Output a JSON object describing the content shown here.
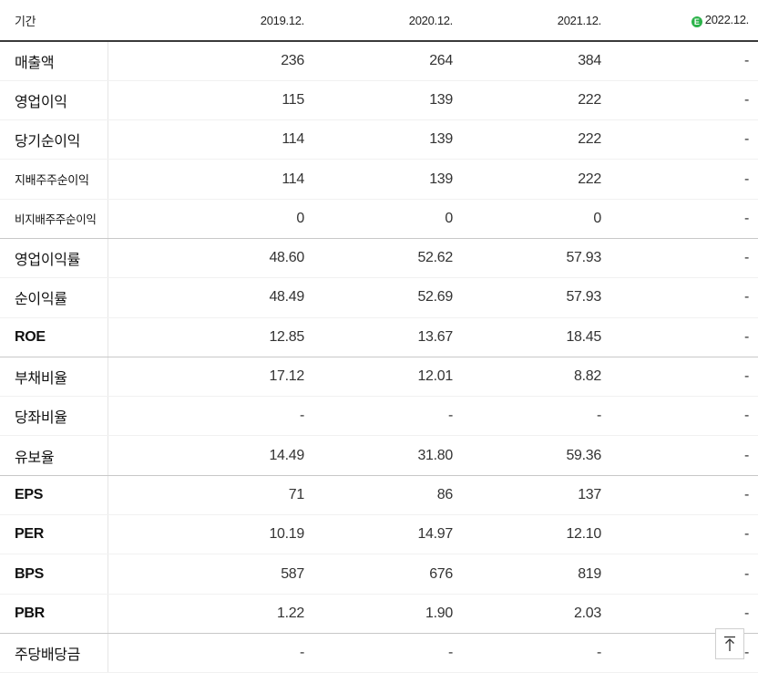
{
  "header": {
    "period_label": "기간",
    "years": [
      "2019.12.",
      "2020.12.",
      "2021.12.",
      "2022.12."
    ],
    "estimate_badge": "E",
    "estimate_color": "#2cb34a"
  },
  "rows": [
    {
      "label": "매출액",
      "values": [
        "236",
        "264",
        "384",
        "-"
      ]
    },
    {
      "label": "영업이익",
      "values": [
        "115",
        "139",
        "222",
        "-"
      ]
    },
    {
      "label": "당기순이익",
      "values": [
        "114",
        "139",
        "222",
        "-"
      ]
    },
    {
      "label": "지배주주순이익",
      "values": [
        "114",
        "139",
        "222",
        "-"
      ]
    },
    {
      "label": "비지배주주순이익",
      "values": [
        "0",
        "0",
        "0",
        "-"
      ]
    },
    {
      "label": "영업이익률",
      "values": [
        "48.60",
        "52.62",
        "57.93",
        "-"
      ]
    },
    {
      "label": "순이익률",
      "values": [
        "48.49",
        "52.69",
        "57.93",
        "-"
      ]
    },
    {
      "label": "ROE",
      "values": [
        "12.85",
        "13.67",
        "18.45",
        "-"
      ]
    },
    {
      "label": "부채비율",
      "values": [
        "17.12",
        "12.01",
        "8.82",
        "-"
      ]
    },
    {
      "label": "당좌비율",
      "values": [
        "-",
        "-",
        "-",
        "-"
      ]
    },
    {
      "label": "유보율",
      "values": [
        "14.49",
        "31.80",
        "59.36",
        "-"
      ]
    },
    {
      "label": "EPS",
      "values": [
        "71",
        "86",
        "137",
        "-"
      ]
    },
    {
      "label": "PER",
      "values": [
        "10.19",
        "14.97",
        "12.10",
        "-"
      ]
    },
    {
      "label": "BPS",
      "values": [
        "587",
        "676",
        "819",
        "-"
      ]
    },
    {
      "label": "PBR",
      "values": [
        "1.22",
        "1.90",
        "2.03",
        "-"
      ]
    },
    {
      "label": "주당배당금",
      "values": [
        "-",
        "-",
        "-",
        "-"
      ]
    }
  ],
  "scroll_top_icon": "arrow-up-to-line-icon"
}
